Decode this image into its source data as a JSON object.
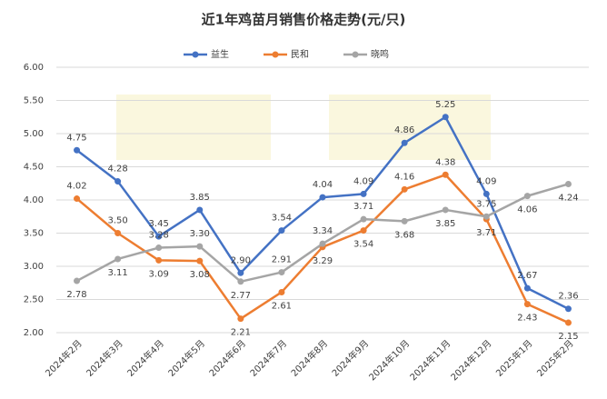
{
  "chart_data": {
    "type": "line",
    "title": "近1年鸡苗月销售价格走势(元/只)",
    "categories": [
      "2024年2月",
      "2024年3月",
      "2024年4月",
      "2024年5月",
      "2024年6月",
      "2024年7月",
      "2024年8月",
      "2024年9月",
      "2024年10月",
      "2024年11月",
      "2024年12月",
      "2025年1月",
      "2025年2月"
    ],
    "series": [
      {
        "name": "益生",
        "color": "#4472c4",
        "values": [
          4.75,
          4.28,
          3.45,
          3.85,
          2.9,
          3.54,
          4.04,
          4.09,
          4.86,
          5.25,
          4.09,
          2.67,
          2.36
        ],
        "value_labels": [
          "4.75",
          "4.28",
          "3.45",
          "3.85",
          "2.90",
          "3.54",
          "4.04",
          "4.09",
          "4.86",
          "5.25",
          "4.09",
          "2.67",
          "2.36"
        ]
      },
      {
        "name": "民和",
        "color": "#ed7d31",
        "values": [
          4.02,
          3.5,
          3.09,
          3.08,
          2.21,
          2.61,
          3.29,
          3.54,
          4.16,
          4.38,
          3.71,
          2.43,
          2.15
        ],
        "value_labels": [
          "4.02",
          "3.50",
          "3.09",
          "3.08",
          "2.21",
          "2.61",
          "3.29",
          "3.54",
          "4.16",
          "4.38",
          "3.71",
          "2.43",
          "2.15"
        ]
      },
      {
        "name": "晓鸣",
        "color": "#a5a5a5",
        "values": [
          2.78,
          3.11,
          3.28,
          3.3,
          2.77,
          2.91,
          3.34,
          3.71,
          3.68,
          3.85,
          3.75,
          4.06,
          4.24
        ],
        "value_labels": [
          "2.78",
          "3.11",
          "3.28",
          "3.30",
          "2.77",
          "2.91",
          "3.34",
          "3.71",
          "3.68",
          "3.85",
          "3.75",
          "4.06",
          "4.24"
        ]
      }
    ],
    "ylim": [
      2,
      6
    ],
    "yticks": [
      {
        "value": 2,
        "label": "2.00"
      },
      {
        "value": 2.5,
        "label": "2.50"
      },
      {
        "value": 3,
        "label": "3.00"
      },
      {
        "value": 3.5,
        "label": "3.50"
      },
      {
        "value": 4,
        "label": "4.00"
      },
      {
        "value": 4.5,
        "label": "4.50"
      },
      {
        "value": 5,
        "label": "5.00"
      },
      {
        "value": 5.5,
        "label": "5.50"
      },
      {
        "value": 6,
        "label": "6.00"
      }
    ],
    "grid": true
  }
}
